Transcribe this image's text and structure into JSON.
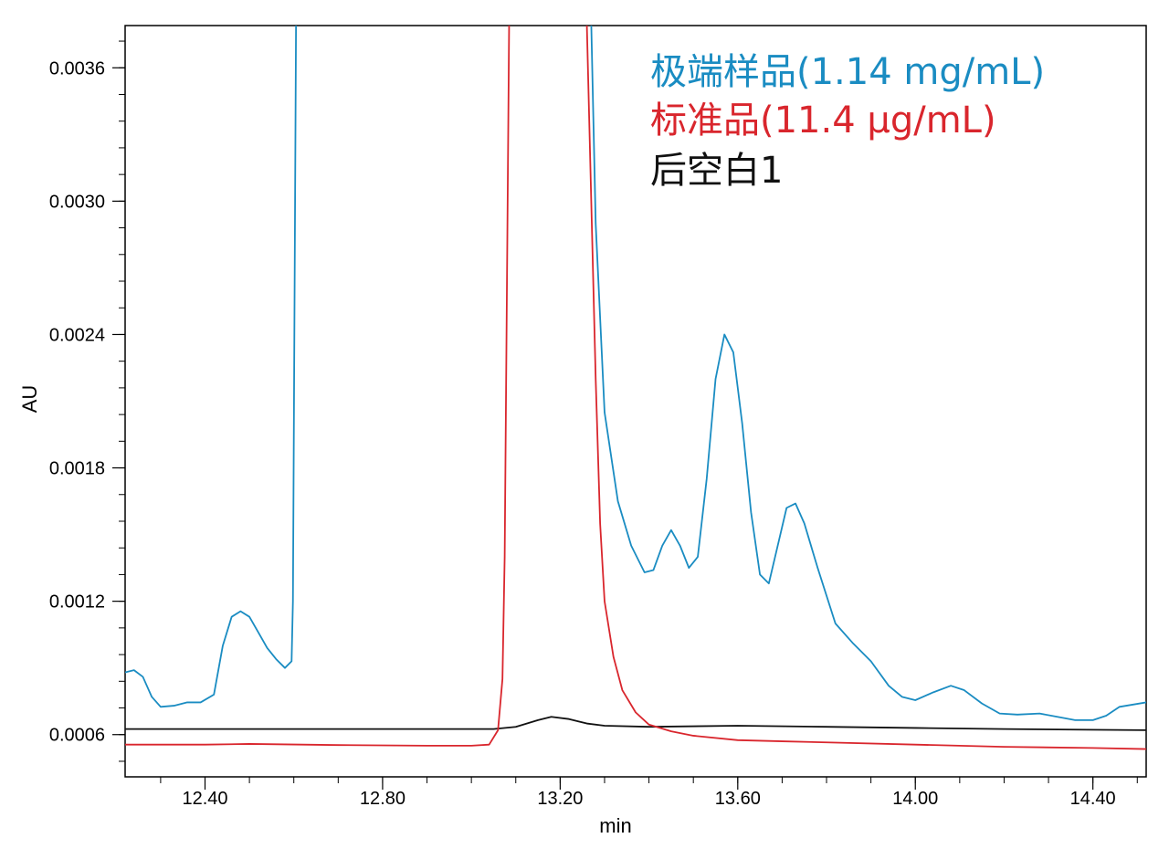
{
  "chart_data": {
    "type": "line",
    "xlabel": "min",
    "ylabel": "AU",
    "xlim": [
      12.22,
      14.52
    ],
    "ylim": [
      0.00041,
      0.00379
    ],
    "x_ticks": [
      "12.40",
      "12.80",
      "13.20",
      "13.60",
      "14.00",
      "14.40"
    ],
    "x_tick_values": [
      12.4,
      12.8,
      13.2,
      13.6,
      14.0,
      14.4
    ],
    "y_ticks": [
      "0.0006",
      "0.0012",
      "0.0018",
      "0.0024",
      "0.0030",
      "0.0036"
    ],
    "y_tick_values": [
      0.0006,
      0.0012,
      0.0018,
      0.0024,
      0.003,
      0.0036
    ],
    "grid": false,
    "legend_position": "top-right",
    "series": [
      {
        "name": "极端样品(1.14 mg/mL)",
        "color": "#1a8cc2",
        "points": [
          [
            12.22,
            0.00088
          ],
          [
            12.24,
            0.00089
          ],
          [
            12.26,
            0.00086
          ],
          [
            12.28,
            0.00077
          ],
          [
            12.3,
            0.000725
          ],
          [
            12.33,
            0.00073
          ],
          [
            12.36,
            0.000745
          ],
          [
            12.39,
            0.000745
          ],
          [
            12.42,
            0.00078
          ],
          [
            12.44,
            0.001
          ],
          [
            12.46,
            0.00113
          ],
          [
            12.48,
            0.001155
          ],
          [
            12.5,
            0.00113
          ],
          [
            12.52,
            0.00106
          ],
          [
            12.54,
            0.00099
          ],
          [
            12.56,
            0.00094
          ],
          [
            12.58,
            0.0009
          ],
          [
            12.595,
            0.00093
          ],
          [
            12.598,
            0.0012
          ],
          [
            12.605,
            0.0038
          ],
          [
            13.27,
            0.0038
          ],
          [
            13.28,
            0.0029
          ],
          [
            13.3,
            0.00205
          ],
          [
            13.33,
            0.00165
          ],
          [
            13.36,
            0.00145
          ],
          [
            13.39,
            0.00133
          ],
          [
            13.41,
            0.00134
          ],
          [
            13.43,
            0.00145
          ],
          [
            13.45,
            0.00152
          ],
          [
            13.47,
            0.00145
          ],
          [
            13.49,
            0.00135
          ],
          [
            13.51,
            0.0014
          ],
          [
            13.53,
            0.00175
          ],
          [
            13.55,
            0.0022
          ],
          [
            13.57,
            0.0024
          ],
          [
            13.59,
            0.00232
          ],
          [
            13.61,
            0.002
          ],
          [
            13.63,
            0.0016
          ],
          [
            13.65,
            0.00132
          ],
          [
            13.67,
            0.00128
          ],
          [
            13.69,
            0.00145
          ],
          [
            13.71,
            0.00162
          ],
          [
            13.73,
            0.00164
          ],
          [
            13.75,
            0.00155
          ],
          [
            13.78,
            0.00135
          ],
          [
            13.82,
            0.0011
          ],
          [
            13.86,
            0.00101
          ],
          [
            13.9,
            0.00093
          ],
          [
            13.94,
            0.00082
          ],
          [
            13.97,
            0.00077
          ],
          [
            14.0,
            0.000755
          ],
          [
            14.04,
            0.00079
          ],
          [
            14.08,
            0.00082
          ],
          [
            14.11,
            0.0008
          ],
          [
            14.15,
            0.00074
          ],
          [
            14.19,
            0.000695
          ],
          [
            14.23,
            0.00069
          ],
          [
            14.28,
            0.000695
          ],
          [
            14.32,
            0.00068
          ],
          [
            14.36,
            0.000665
          ],
          [
            14.4,
            0.000665
          ],
          [
            14.43,
            0.000685
          ],
          [
            14.46,
            0.000725
          ],
          [
            14.52,
            0.000745
          ]
        ]
      },
      {
        "name": "标准品(11.4 μg/mL)",
        "color": "#d9262d",
        "points": [
          [
            12.22,
            0.000555
          ],
          [
            12.4,
            0.000555
          ],
          [
            12.5,
            0.000558
          ],
          [
            12.7,
            0.000553
          ],
          [
            12.9,
            0.00055
          ],
          [
            13.0,
            0.00055
          ],
          [
            13.04,
            0.000555
          ],
          [
            13.06,
            0.00062
          ],
          [
            13.07,
            0.00085
          ],
          [
            13.075,
            0.0014
          ],
          [
            13.085,
            0.0038
          ],
          [
            13.26,
            0.0038
          ],
          [
            13.27,
            0.003
          ],
          [
            13.28,
            0.0022
          ],
          [
            13.29,
            0.00155
          ],
          [
            13.3,
            0.0012
          ],
          [
            13.32,
            0.00095
          ],
          [
            13.34,
            0.0008
          ],
          [
            13.37,
            0.0007
          ],
          [
            13.4,
            0.000645
          ],
          [
            13.45,
            0.000615
          ],
          [
            13.5,
            0.000595
          ],
          [
            13.6,
            0.000575
          ],
          [
            13.7,
            0.00057
          ],
          [
            13.8,
            0.000565
          ],
          [
            14.0,
            0.000555
          ],
          [
            14.2,
            0.000545
          ],
          [
            14.4,
            0.00054
          ],
          [
            14.52,
            0.000535
          ]
        ]
      },
      {
        "name": "后空白1",
        "color": "#111111",
        "points": [
          [
            12.22,
            0.000625
          ],
          [
            12.5,
            0.000625
          ],
          [
            12.8,
            0.000625
          ],
          [
            13.05,
            0.000625
          ],
          [
            13.1,
            0.000635
          ],
          [
            13.15,
            0.000665
          ],
          [
            13.18,
            0.00068
          ],
          [
            13.22,
            0.00067
          ],
          [
            13.26,
            0.00065
          ],
          [
            13.3,
            0.00064
          ],
          [
            13.4,
            0.000635
          ],
          [
            13.6,
            0.00064
          ],
          [
            13.8,
            0.000635
          ],
          [
            14.0,
            0.00063
          ],
          [
            14.2,
            0.000625
          ],
          [
            14.52,
            0.00062
          ]
        ]
      }
    ]
  }
}
